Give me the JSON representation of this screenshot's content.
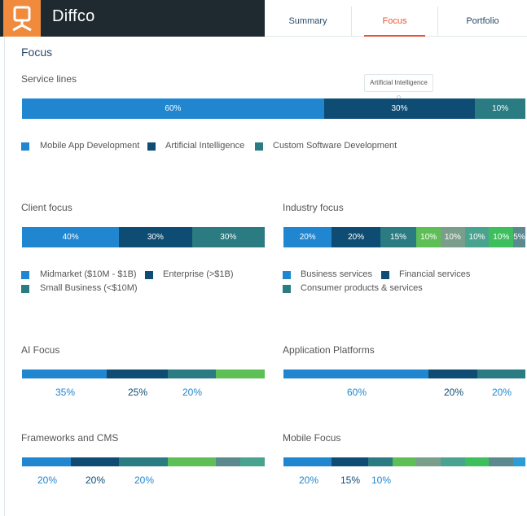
{
  "app": {
    "name": "Diffco"
  },
  "tabs": [
    {
      "label": "Summary"
    },
    {
      "label": "Focus"
    },
    {
      "label": "Portfolio"
    }
  ],
  "page": {
    "title": "Focus"
  },
  "service_lines": {
    "title": "Service lines",
    "tooltip": "Artificial Intelligence",
    "segments": [
      {
        "name": "Mobile App Development",
        "value": 60,
        "label": "60%",
        "color": "#1f86cf"
      },
      {
        "name": "Artificial Intelligence",
        "value": 30,
        "label": "30%",
        "color": "#0f4c73"
      },
      {
        "name": "Custom Software Development",
        "value": 10,
        "label": "10%",
        "color": "#2a7b82"
      }
    ]
  },
  "client_focus": {
    "title": "Client focus",
    "segments": [
      {
        "name": "Midmarket ($10M - $1B)",
        "value": 40,
        "label": "40%",
        "color": "#1f86cf"
      },
      {
        "name": "Enterprise (>$1B)",
        "value": 30,
        "label": "30%",
        "color": "#0f4c73"
      },
      {
        "name": "Small Business (<$10M)",
        "value": 30,
        "label": "30%",
        "color": "#2a7b82"
      }
    ]
  },
  "industry_focus": {
    "title": "Industry focus",
    "segments": [
      {
        "name": "Business services",
        "value": 20,
        "label": "20%",
        "color": "#1f86cf"
      },
      {
        "name": "Financial services",
        "value": 20,
        "label": "20%",
        "color": "#0f4c73"
      },
      {
        "name": "Consumer products & services",
        "value": 15,
        "label": "15%",
        "color": "#2a7b82"
      },
      {
        "value": 10,
        "label": "10%",
        "color": "#5fbf57"
      },
      {
        "value": 10,
        "label": "10%",
        "color": "#7a9e8c"
      },
      {
        "value": 10,
        "label": "10%",
        "color": "#4aa38f"
      },
      {
        "value": 10,
        "label": "10%",
        "color": "#3dbf5e"
      },
      {
        "value": 5,
        "label": "5%",
        "color": "#5a8a8e"
      }
    ]
  },
  "ai_focus": {
    "title": "AI Focus",
    "segments": [
      {
        "value": 35,
        "color": "#1f86cf"
      },
      {
        "value": 25,
        "color": "#0f4c73"
      },
      {
        "value": 20,
        "color": "#2a7b82"
      },
      {
        "value": 20,
        "color": "#5fbf57"
      }
    ],
    "labels": [
      "35%",
      "25%",
      "20%"
    ]
  },
  "application_platforms": {
    "title": "Application Platforms",
    "segments": [
      {
        "value": 60,
        "color": "#1f86cf"
      },
      {
        "value": 20,
        "color": "#0f4c73"
      },
      {
        "value": 20,
        "color": "#2a7b82"
      }
    ],
    "labels": [
      "60%",
      "20%",
      "20%"
    ]
  },
  "frameworks_cms": {
    "title": "Frameworks and CMS",
    "segments": [
      {
        "value": 20,
        "color": "#1f86cf"
      },
      {
        "value": 20,
        "color": "#0f4c73"
      },
      {
        "value": 20,
        "color": "#2a7b82"
      },
      {
        "value": 20,
        "color": "#5fbf57"
      },
      {
        "value": 10,
        "color": "#5a8a8e"
      },
      {
        "value": 10,
        "color": "#4aa38f"
      }
    ],
    "labels": [
      "20%",
      "20%",
      "20%"
    ]
  },
  "mobile_focus": {
    "title": "Mobile Focus",
    "segments": [
      {
        "value": 20,
        "color": "#1f86cf"
      },
      {
        "value": 15,
        "color": "#0f4c73"
      },
      {
        "value": 10,
        "color": "#2a7b82"
      },
      {
        "value": 10,
        "color": "#5fbf57"
      },
      {
        "value": 10,
        "color": "#7a9e8c"
      },
      {
        "value": 10,
        "color": "#4aa38f"
      },
      {
        "value": 10,
        "color": "#3dbf5e"
      },
      {
        "value": 10,
        "color": "#5a8a8e"
      },
      {
        "value": 5,
        "color": "#2d9bd8"
      }
    ],
    "labels": [
      "20%",
      "15%",
      "10%"
    ]
  }
}
